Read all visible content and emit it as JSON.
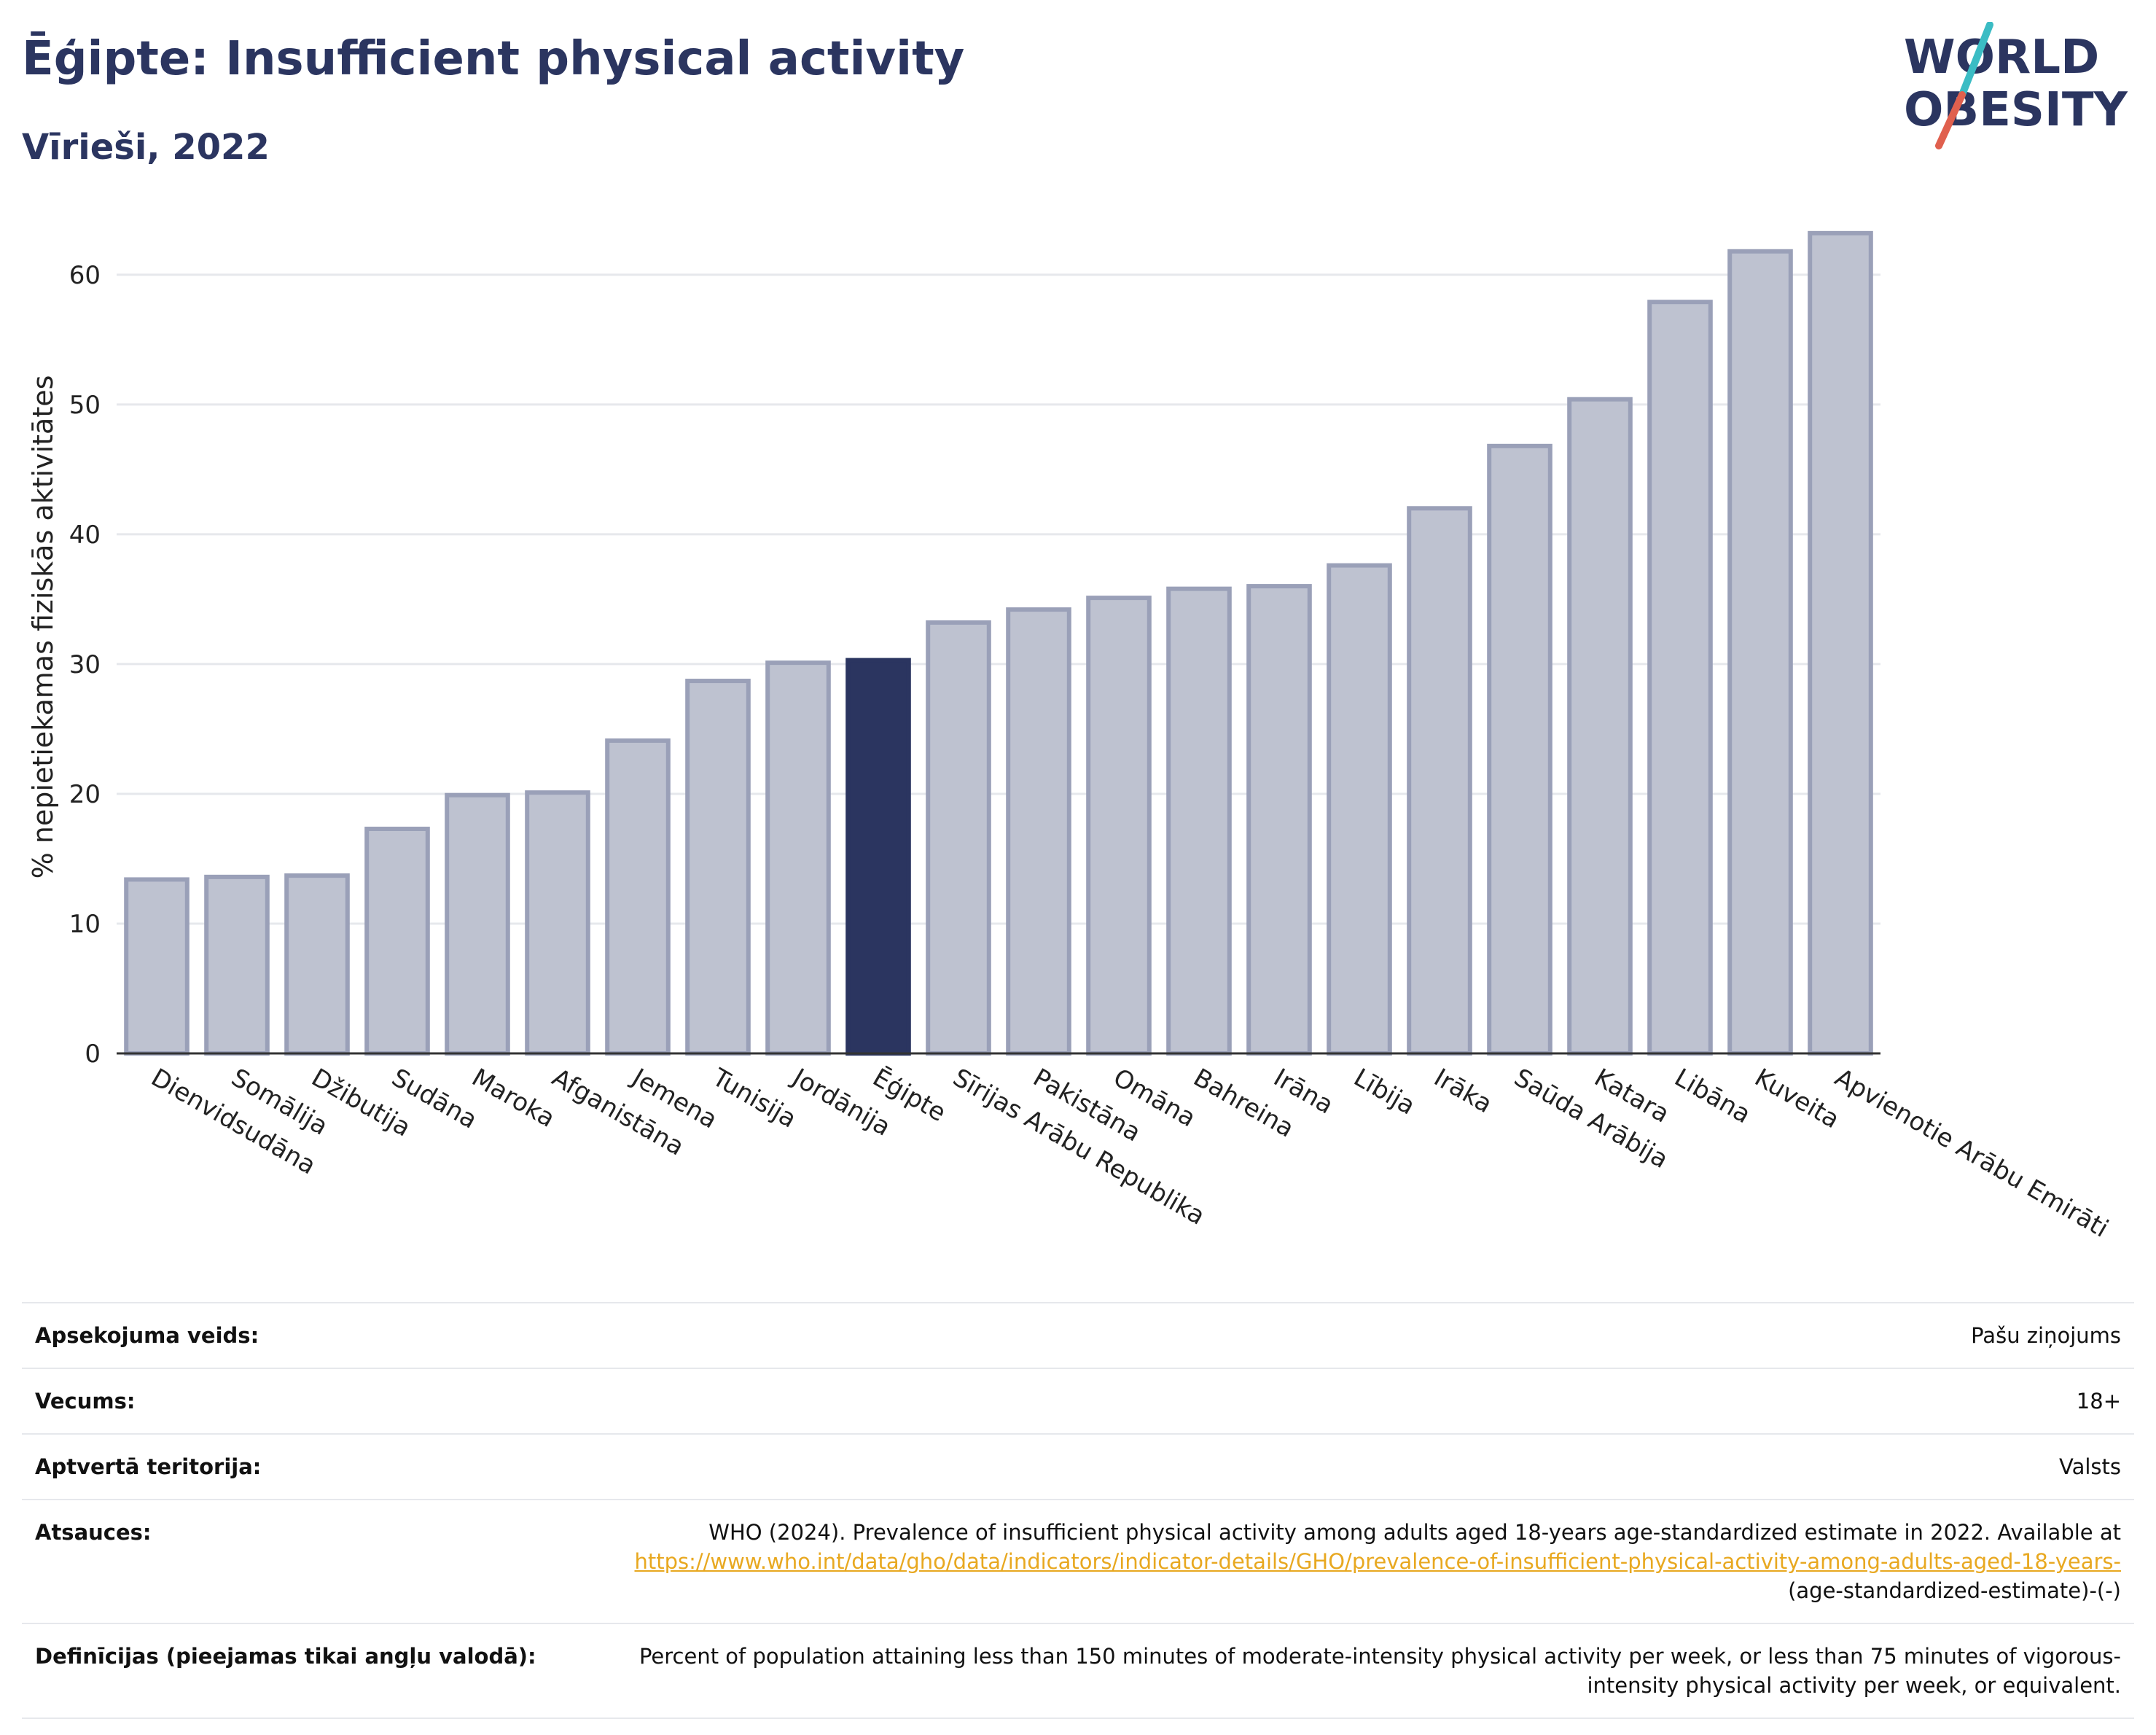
{
  "header": {
    "title": "Ēģipte: Insufficient physical activity",
    "subtitle": "Vīrieši, 2022"
  },
  "logo": {
    "line1": "WORLD",
    "line2": "OBESITY"
  },
  "colors": {
    "title": "#2b3560",
    "bar": "#bec2d0",
    "bar_stroke": "#9aa0b8",
    "highlight": "#2b3560",
    "grid": "#e6e8ec",
    "link": "#e8a820",
    "logo_teal": "#3bbcc4",
    "logo_red": "#e0604e"
  },
  "chart_data": {
    "type": "bar",
    "title": "",
    "xlabel": "",
    "ylabel": "% nepietiekamas fiziskās aktivitātes",
    "ylim": [
      0,
      66
    ],
    "yticks": [
      0,
      10,
      20,
      30,
      40,
      50,
      60
    ],
    "grid": true,
    "legend": "none",
    "highlight_category": "Ēģipte",
    "categories": [
      "Dienvidsudāna",
      "Somālija",
      "Džibutija",
      "Sudāna",
      "Maroka",
      "Afganistāna",
      "Jemena",
      "Tunisija",
      "Jordānija",
      "Ēģipte",
      "Sīrijas Arābu Republika",
      "Pakistāna",
      "Omāna",
      "Bahreina",
      "Irāna",
      "Lībija",
      "Irāka",
      "Saūda Arābija",
      "Katara",
      "Libāna",
      "Kuveita",
      "Apvienotie Arābu Emirāti"
    ],
    "values": [
      13.4,
      13.6,
      13.7,
      17.3,
      19.9,
      20.1,
      24.1,
      28.7,
      30.1,
      30.3,
      33.2,
      34.2,
      35.1,
      35.8,
      36.0,
      37.6,
      42.0,
      46.8,
      50.4,
      57.9,
      61.8,
      63.2
    ]
  },
  "info_table": {
    "survey_type": {
      "label": "Apsekojuma veids:",
      "value": "Pašu ziņojums"
    },
    "age": {
      "label": "Vecums:",
      "value": "18+"
    },
    "coverage": {
      "label": "Aptvertā teritorija:",
      "value": "Valsts"
    },
    "references": {
      "label": "Atsauces:",
      "text": "WHO (2024). Prevalence of insufficient physical activity among adults aged 18-years age-standardized estimate in 2022. Available at",
      "link": "https://www.who.int/data/gho/data/indicators/indicator-details/GHO/prevalence-of-insufficient-physical-activity-among-adults-aged-18-years-",
      "suffix": "(age-standardized-estimate)-(-)"
    },
    "definitions": {
      "label": "Definīcijas (pieejamas tikai angļu valodā):",
      "value": "Percent of population attaining less than 150 minutes of moderate-intensity physical activity per week, or less than 75 minutes of vigorous-intensity physical activity per week, or equivalent."
    }
  }
}
